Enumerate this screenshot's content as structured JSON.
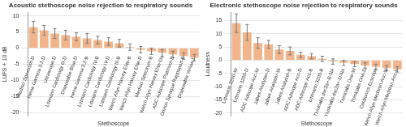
{
  "chart_data": [
    {
      "type": "bar",
      "title": "Acoustic stethoscope noise rejection to respiratory sounds",
      "x_label": "Stethoscope",
      "y_label": "LUFS + 10 dB",
      "categories": [
        "Medisci Spectrum-D",
        "Heine Gamma 3.2-D",
        "Ultrascope-D",
        "Littmann Cardiology III-D",
        "Disposable Blue-D",
        "Heine Gamma 3.2-B",
        "Littmann Cardiology IV-B",
        "Littmann Cardiology IV-D",
        "Littmann Cardiology III-B",
        "Welch Allyn Harvey Elite-B",
        "Welch Allyn Harvey Elite-D",
        "Medisci Spectrum-B",
        "Welch Allyn Harvey Elite-Dx",
        "ADC Adscope Platinum-D",
        "Omron Sprague Rappaport-B",
        "Disposable Yellow-D"
      ],
      "values": [
        6.5,
        5.5,
        4.5,
        4,
        3.5,
        3,
        2.5,
        2,
        1.5,
        0.3,
        -0.5,
        -1,
        -1.5,
        -2,
        -2.5,
        -3
      ],
      "errors": [
        1.8,
        1.5,
        1.5,
        1.5,
        1.2,
        1.5,
        1.2,
        1.2,
        1.2,
        1,
        1,
        1,
        1,
        1,
        1,
        1
      ],
      "color": "#f2b48a",
      "ylim": [
        -21,
        11
      ],
      "yticks": [
        -20,
        -15,
        -10,
        -5,
        0,
        5,
        10
      ],
      "grid": true
    },
    {
      "type": "bar",
      "title": "Electronic stethoscope noise rejection to respiratory sounds",
      "x_label": "Stethoscope",
      "y_label": "Loudness",
      "categories": [
        "Littmann 3200-W",
        "Littmann 3200-D",
        "ADC Adscope Acc-W",
        "Jabes Analyzer-D",
        "Jabes Analyzer-W",
        "Jabes Analyzer-B",
        "ADC Adscope Acc-D",
        "ADC Adscope Acc-B",
        "Littmann 3200-B",
        "Thinklabs dsc2a+-B-NA",
        "Thinklabs dsc2a+-D-NA",
        "Thinklabs One-W",
        "Thinklabs One-D",
        "Cardionics Ecscope",
        "Welch Allyn Meditron Acc-W",
        "Welch Allyn Meditron Acc-H"
      ],
      "values": [
        14,
        10.5,
        6.5,
        6,
        4,
        3.5,
        2,
        1.5,
        0.5,
        -0.5,
        -1,
        -1.5,
        -2,
        -2.5,
        -3,
        -3.5
      ],
      "errors": [
        3.5,
        3,
        2,
        1.5,
        1.5,
        1.5,
        1,
        1,
        1,
        1,
        1,
        1,
        1,
        1,
        1,
        1
      ],
      "color": "#f2b48a",
      "ylim": [
        -21,
        18
      ],
      "yticks": [
        -20,
        -15,
        -10,
        -5,
        0,
        5,
        10,
        15
      ],
      "grid": true
    }
  ]
}
